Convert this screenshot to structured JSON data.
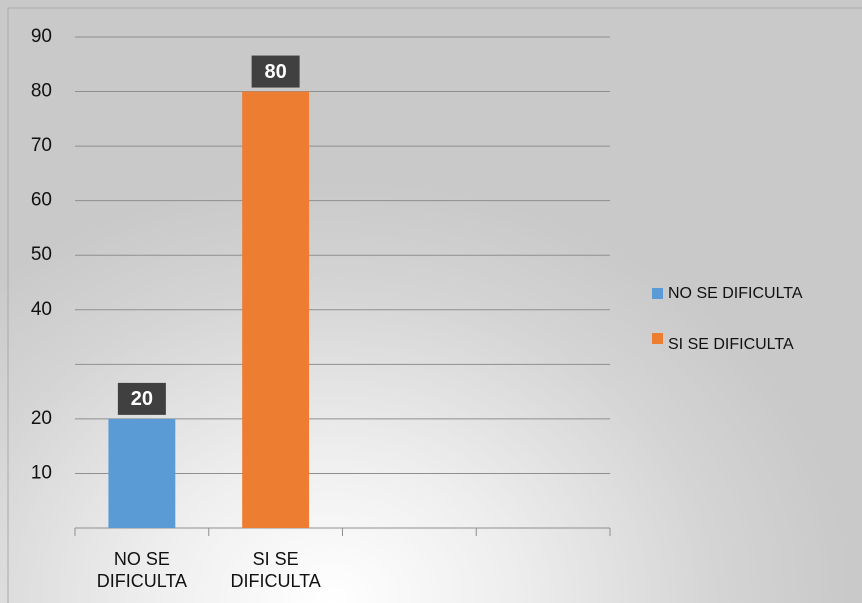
{
  "chart_data": {
    "type": "bar",
    "categories": [
      "NO SE DIFICULTA",
      "SI SE DIFICULTA",
      null,
      null
    ],
    "series": [
      {
        "name": "NO SE DIFICULTA",
        "color": "#5b9bd5",
        "values": [
          20,
          null,
          null,
          null
        ]
      },
      {
        "name": "SI SE DIFICULTA",
        "color": "#ed7d31",
        "values": [
          null,
          80,
          null,
          null
        ]
      }
    ],
    "ylim": [
      0,
      90
    ],
    "yticks": [
      10,
      20,
      40,
      50,
      60,
      70,
      80,
      90
    ],
    "gridlines": [
      0,
      10,
      20,
      30,
      40,
      50,
      60,
      70,
      80,
      90
    ],
    "grid": true,
    "legend": "right"
  }
}
